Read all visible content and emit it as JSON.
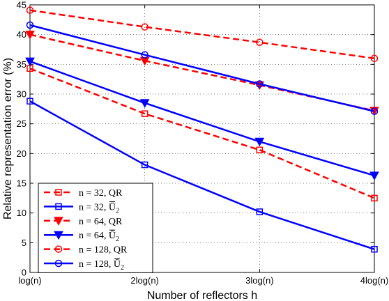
{
  "chart_data": {
    "type": "line",
    "title": "",
    "xlabel": "Number of reflectors h",
    "ylabel": "Relative representation error (%)",
    "categories": [
      "log(n)",
      "2log(n)",
      "3log(n)",
      "4log(n)"
    ],
    "ylim": [
      0,
      45
    ],
    "yticks": [
      0,
      5,
      10,
      15,
      20,
      25,
      30,
      35,
      40,
      45
    ],
    "grid": true,
    "legend_position": "bottom-left",
    "series": [
      {
        "name": "n = 32, QR",
        "name_main": "n = 32, QR",
        "name_sub": "",
        "values": [
          34.3,
          26.7,
          20.6,
          12.5
        ],
        "color": "#ff0000",
        "dash": "dashed",
        "marker": "square"
      },
      {
        "name": "n = 32, Ū2",
        "name_main": "n = 32, Ū",
        "name_sub": "2",
        "values": [
          28.8,
          18.1,
          10.2,
          3.9
        ],
        "color": "#0000ff",
        "dash": "solid",
        "marker": "square"
      },
      {
        "name": "n = 64, QR",
        "name_main": "n = 64, QR",
        "name_sub": "",
        "values": [
          40.0,
          35.6,
          31.5,
          27.2
        ],
        "color": "#ff0000",
        "dash": "dashed",
        "marker": "triangle-down"
      },
      {
        "name": "n = 64, Ū2",
        "name_main": "n = 64, Ū",
        "name_sub": "2",
        "values": [
          35.5,
          28.5,
          22.0,
          16.3
        ],
        "color": "#0000ff",
        "dash": "solid",
        "marker": "triangle-down"
      },
      {
        "name": "n = 128, QR",
        "name_main": "n = 128, QR",
        "name_sub": "",
        "values": [
          44.1,
          41.3,
          38.7,
          36.0
        ],
        "color": "#ff0000",
        "dash": "dashed",
        "marker": "circle"
      },
      {
        "name": "n = 128, Ū2",
        "name_main": "n = 128, Ū",
        "name_sub": "2",
        "values": [
          41.6,
          36.6,
          31.7,
          27.1
        ],
        "color": "#0000ff",
        "dash": "solid",
        "marker": "circle"
      }
    ]
  }
}
